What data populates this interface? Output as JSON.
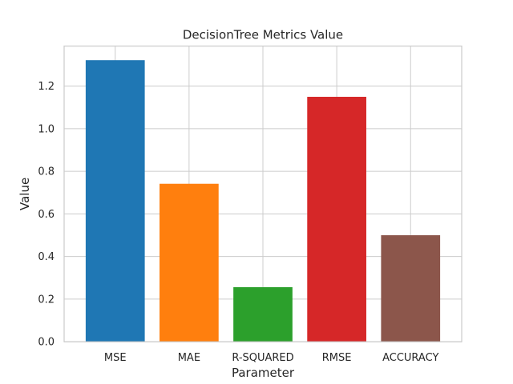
{
  "chart_data": {
    "type": "bar",
    "title": "DecisionTree Metrics Value",
    "xlabel": "Parameter",
    "ylabel": "Value",
    "categories": [
      "MSE",
      "MAE",
      "R-SQUARED",
      "RMSE",
      "ACCURACY"
    ],
    "values": [
      1.3217,
      0.7415,
      0.2562,
      1.1497,
      0.5
    ],
    "colors": [
      "#1f77b4",
      "#ff7f0e",
      "#2ca02c",
      "#d62728",
      "#8c564b"
    ],
    "ylim": [
      0,
      1.3878
    ],
    "yticks": [
      "0.0",
      "0.2",
      "0.4",
      "0.6",
      "0.8",
      "1.0",
      "1.2"
    ],
    "grid": true,
    "legend": "none"
  }
}
